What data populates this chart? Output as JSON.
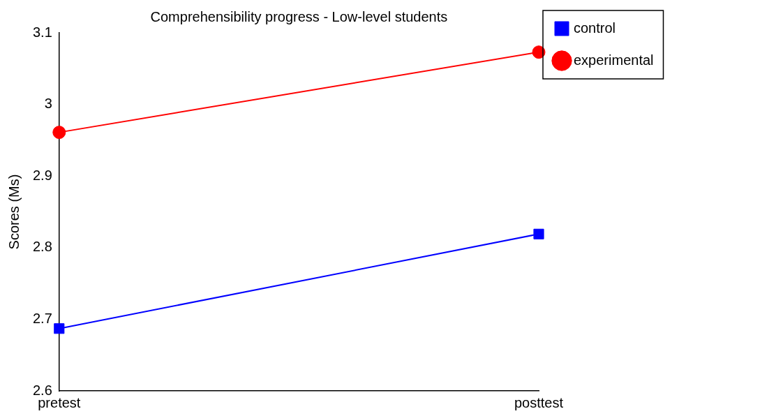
{
  "chart_data": {
    "type": "line",
    "title": "Comprehensibility progress - Low-level students",
    "ylabel": "Scores (Ms)",
    "categories": [
      "pretest",
      "posttest"
    ],
    "series": [
      {
        "name": "control",
        "color": "#0000ff",
        "marker": "square",
        "values": [
          2.687,
          2.819
        ]
      },
      {
        "name": "experimental",
        "color": "#ff0000",
        "marker": "circle",
        "values": [
          2.961,
          3.073
        ]
      }
    ],
    "ylim": [
      2.6,
      3.1
    ],
    "yticks": [
      2.6,
      2.7,
      2.8,
      2.9,
      3,
      3.1
    ],
    "grid": false,
    "legend": "top right",
    "line_style": "solid"
  }
}
